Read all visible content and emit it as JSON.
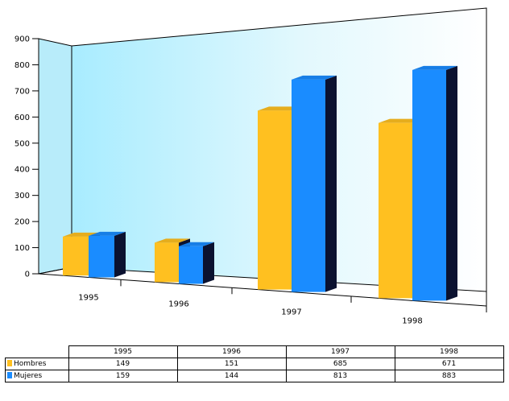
{
  "chart_data": {
    "type": "bar",
    "categories": [
      "1995",
      "1996",
      "1997",
      "1998"
    ],
    "series": [
      {
        "name": "Hombres",
        "values": [
          149,
          151,
          685,
          671
        ],
        "color": "#ffc020"
      },
      {
        "name": "Mujeres",
        "values": [
          159,
          144,
          813,
          883
        ],
        "color": "#1a8cff"
      }
    ],
    "yticks": [
      0,
      100,
      200,
      300,
      400,
      500,
      600,
      700,
      800,
      900
    ],
    "ylim": [
      0,
      900
    ],
    "grid": false,
    "legend": "table below chart",
    "style": "3d"
  },
  "table": {
    "headers": [
      "1995",
      "1996",
      "1997",
      "1998"
    ],
    "rows": [
      {
        "label": "Hombres",
        "color": "#ffc020",
        "values": [
          "149",
          "151",
          "685",
          "671"
        ]
      },
      {
        "label": "Mujeres",
        "color": "#1a8cff",
        "values": [
          "159",
          "144",
          "813",
          "883"
        ]
      }
    ]
  }
}
